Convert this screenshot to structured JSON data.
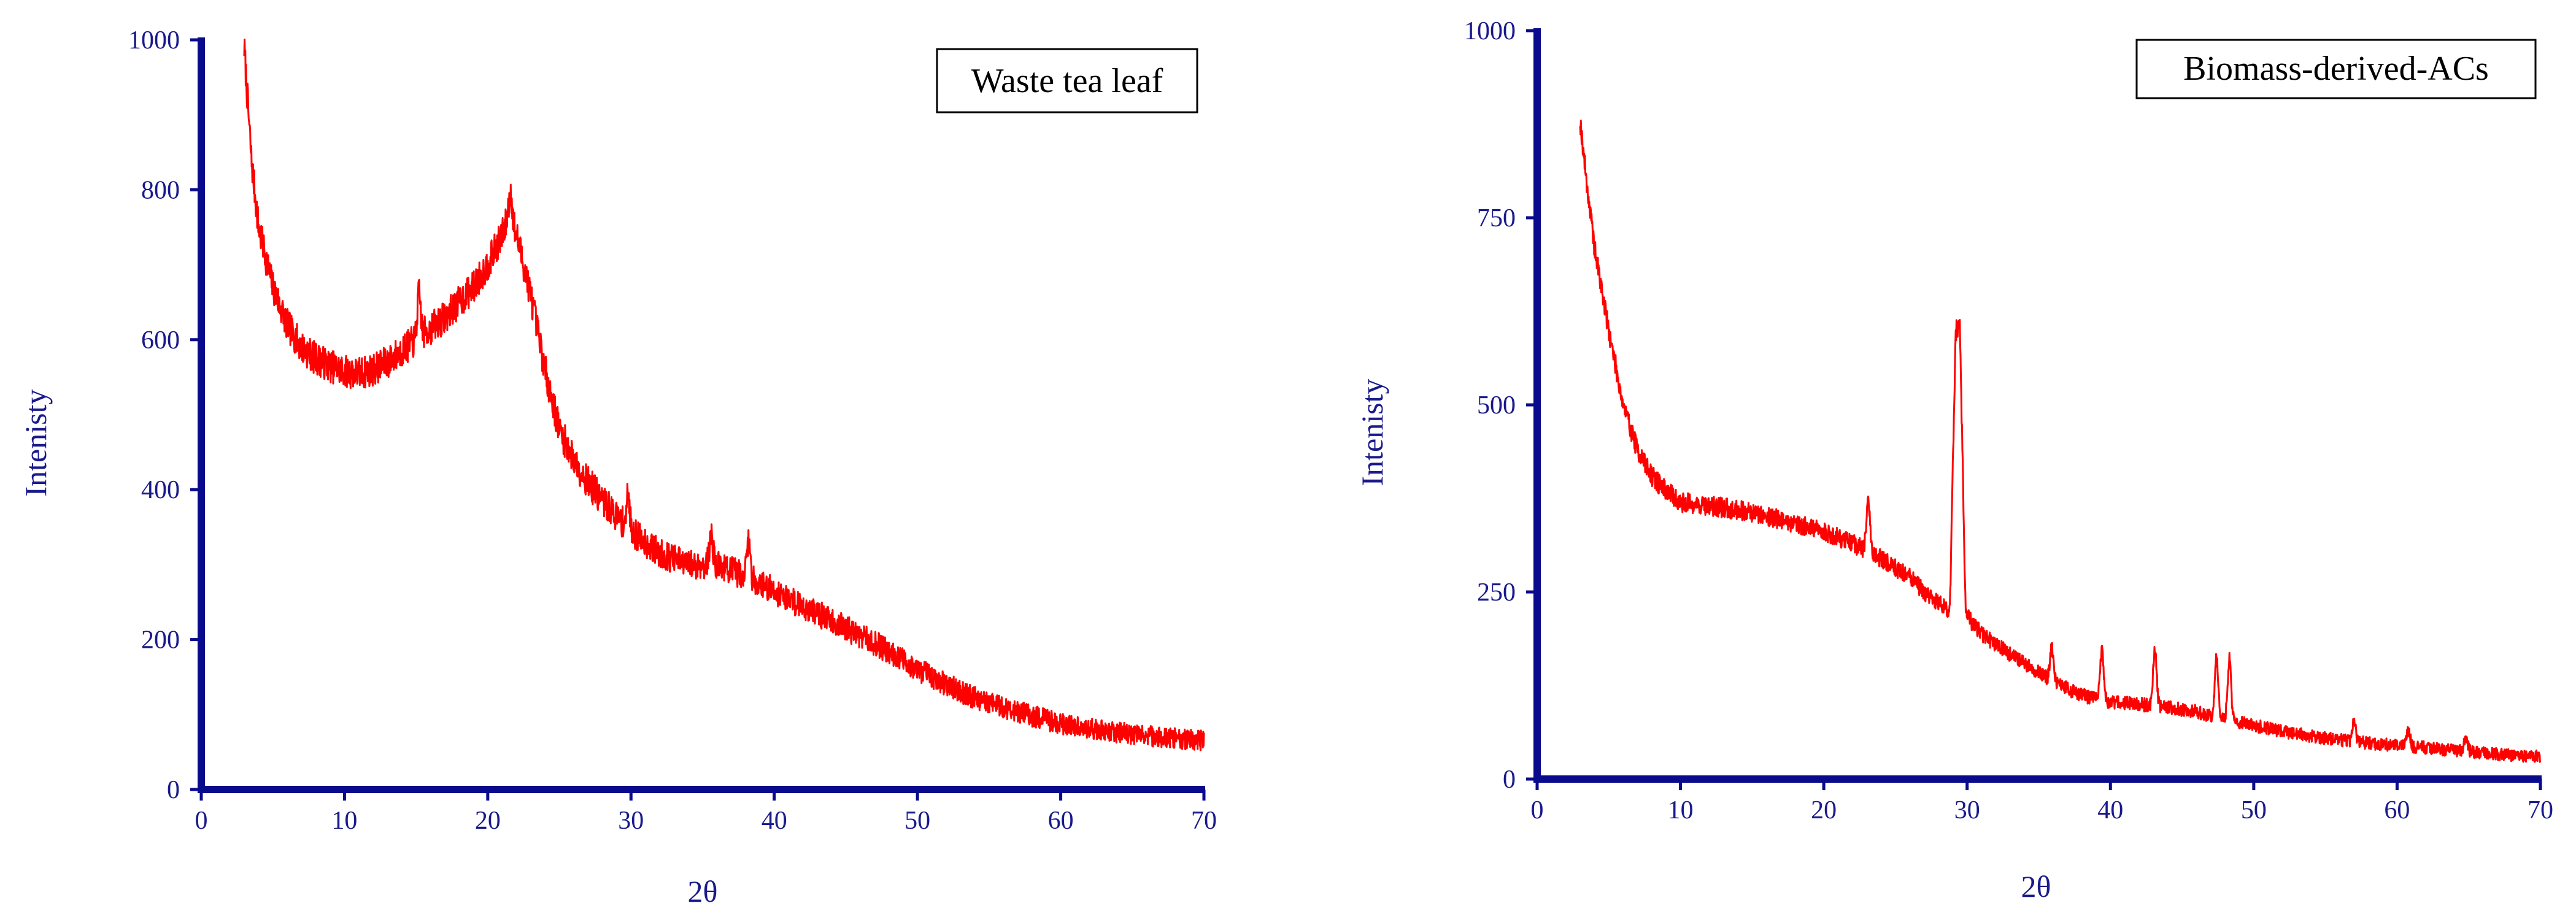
{
  "chart_data": [
    {
      "id": "waste",
      "type": "line",
      "title": "Waste tea leaf",
      "xlabel": "2θ",
      "ylabel": "Intenisty",
      "xlim": [
        0,
        70
      ],
      "ylim": [
        0,
        1000
      ],
      "xticks": [
        0,
        10,
        20,
        30,
        40,
        50,
        60,
        70
      ],
      "yticks": [
        0,
        200,
        400,
        600,
        800,
        1000
      ],
      "grid": false,
      "legend": "top-right",
      "series": [
        {
          "name": "Waste tea leaf",
          "color": "#ff0000",
          "noise": 22,
          "seed": 7,
          "x": [
            3,
            3.5,
            4,
            5,
            6,
            7,
            8,
            9,
            10,
            11,
            12,
            13,
            14,
            15,
            16,
            17,
            18,
            19,
            20,
            21,
            21.5,
            22,
            23,
            24,
            25,
            26,
            27,
            28,
            29,
            30,
            32,
            34,
            36,
            38,
            40,
            42,
            44,
            46,
            48,
            50,
            52,
            54,
            56,
            58,
            60,
            62,
            64,
            66,
            68,
            70
          ],
          "y": [
            990,
            840,
            750,
            670,
            620,
            590,
            575,
            565,
            558,
            555,
            560,
            570,
            585,
            600,
            615,
            630,
            650,
            670,
            700,
            740,
            765,
            740,
            660,
            560,
            480,
            440,
            410,
            385,
            365,
            345,
            315,
            300,
            300,
            285,
            265,
            245,
            225,
            205,
            185,
            160,
            140,
            122,
            110,
            98,
            88,
            82,
            76,
            72,
            68,
            65
          ],
          "spikes": [
            {
              "x": 15.2,
              "y": 660
            },
            {
              "x": 21.6,
              "y": 795
            },
            {
              "x": 29.8,
              "y": 390
            },
            {
              "x": 35.6,
              "y": 340
            },
            {
              "x": 38.2,
              "y": 330
            }
          ]
        }
      ]
    },
    {
      "id": "biomass",
      "type": "line",
      "title": "Biomass-derived-ACs",
      "xlabel": "2θ",
      "ylabel": "Intenisty",
      "xlim": [
        0,
        70
      ],
      "ylim": [
        0,
        1000
      ],
      "xticks": [
        0,
        10,
        20,
        30,
        40,
        50,
        60,
        70
      ],
      "yticks": [
        0,
        250,
        500,
        750,
        1000
      ],
      "grid": false,
      "legend": "top-right",
      "series": [
        {
          "name": "Biomass-derived-ACs",
          "color": "#ff0000",
          "noise": 14,
          "seed": 19,
          "x": [
            3,
            3.5,
            4,
            5,
            6,
            7,
            8,
            9,
            10,
            12,
            14,
            16,
            18,
            20,
            22,
            24,
            26,
            27,
            28,
            28.8,
            29.2,
            29.5,
            29.9,
            30.5,
            31,
            32,
            34,
            36,
            38,
            40,
            42,
            44,
            46,
            48,
            50,
            52,
            54,
            56,
            58,
            60,
            62,
            64,
            66,
            68,
            70
          ],
          "y": [
            880,
            790,
            710,
            600,
            500,
            440,
            405,
            385,
            370,
            365,
            360,
            352,
            342,
            330,
            315,
            295,
            270,
            250,
            235,
            225,
            600,
            600,
            220,
            205,
            195,
            180,
            155,
            130,
            112,
            102,
            100,
            96,
            90,
            80,
            72,
            64,
            57,
            52,
            48,
            45,
            42,
            38,
            35,
            32,
            30
          ],
          "spikes": [
            {
              "x": 23.1,
              "y": 370
            },
            {
              "x": 35.9,
              "y": 175
            },
            {
              "x": 39.4,
              "y": 170
            },
            {
              "x": 43.1,
              "y": 175
            },
            {
              "x": 47.4,
              "y": 160
            },
            {
              "x": 48.3,
              "y": 160
            },
            {
              "x": 57.0,
              "y": 75
            },
            {
              "x": 60.8,
              "y": 65
            },
            {
              "x": 64.8,
              "y": 55
            }
          ]
        }
      ]
    }
  ]
}
